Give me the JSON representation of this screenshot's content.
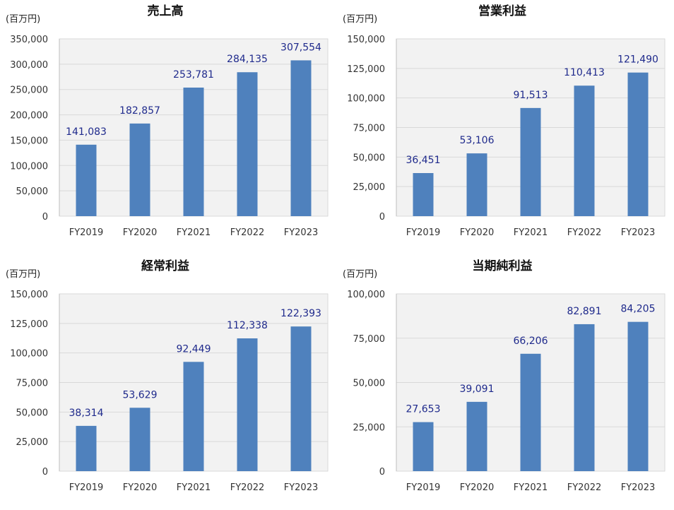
{
  "colors": {
    "bar": "#4f81bd",
    "plot_bg": "#f2f2f2",
    "grid": "#d9d9d9",
    "label": "#1f2a8c"
  },
  "chart_data": [
    {
      "type": "bar",
      "title": "売上高",
      "unit": "(百万円)",
      "categories": [
        "FY2019",
        "FY2020",
        "FY2021",
        "FY2022",
        "FY2023"
      ],
      "values": [
        141083,
        182857,
        253781,
        284135,
        307554
      ],
      "value_labels": [
        "141,083",
        "182,857",
        "253,781",
        "284,135",
        "307,554"
      ],
      "ylim": [
        0,
        350000
      ],
      "yticks": [
        "0",
        "50,000",
        "100,000",
        "150,000",
        "200,000",
        "250,000",
        "300,000",
        "350,000"
      ],
      "grid": true
    },
    {
      "type": "bar",
      "title": "営業利益",
      "unit": "(百万円)",
      "categories": [
        "FY2019",
        "FY2020",
        "FY2021",
        "FY2022",
        "FY2023"
      ],
      "values": [
        36451,
        53106,
        91513,
        110413,
        121490
      ],
      "value_labels": [
        "36,451",
        "53,106",
        "91,513",
        "110,413",
        "121,490"
      ],
      "ylim": [
        0,
        150000
      ],
      "yticks": [
        "0",
        "25,000",
        "50,000",
        "75,000",
        "100,000",
        "125,000",
        "150,000"
      ],
      "grid": true
    },
    {
      "type": "bar",
      "title": "経常利益",
      "unit": "(百万円)",
      "categories": [
        "FY2019",
        "FY2020",
        "FY2021",
        "FY2022",
        "FY2023"
      ],
      "values": [
        38314,
        53629,
        92449,
        112338,
        122393
      ],
      "value_labels": [
        "38,314",
        "53,629",
        "92,449",
        "112,338",
        "122,393"
      ],
      "ylim": [
        0,
        150000
      ],
      "yticks": [
        "0",
        "25,000",
        "50,000",
        "75,000",
        "100,000",
        "125,000",
        "150,000"
      ],
      "grid": true
    },
    {
      "type": "bar",
      "title": "当期純利益",
      "unit": "(百万円)",
      "categories": [
        "FY2019",
        "FY2020",
        "FY2021",
        "FY2022",
        "FY2023"
      ],
      "values": [
        27653,
        39091,
        66206,
        82891,
        84205
      ],
      "value_labels": [
        "27,653",
        "39,091",
        "66,206",
        "82,891",
        "84,205"
      ],
      "ylim": [
        0,
        100000
      ],
      "yticks": [
        "0",
        "25,000",
        "50,000",
        "75,000",
        "100,000"
      ],
      "grid": true
    }
  ]
}
